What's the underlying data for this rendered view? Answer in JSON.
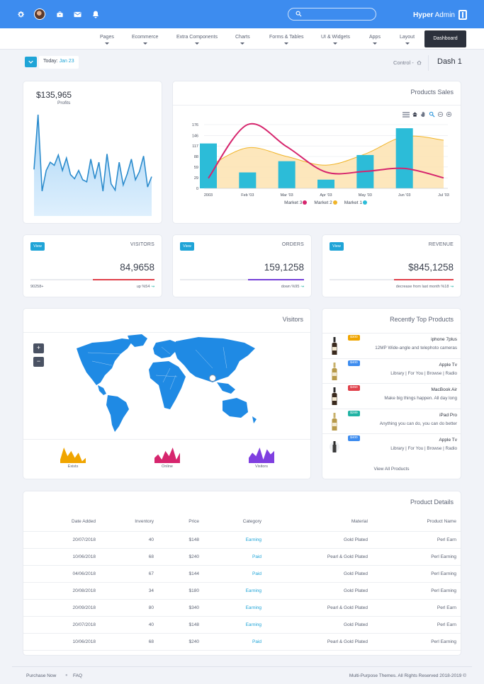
{
  "topbar": {
    "icons": [
      "gear-icon",
      "avatar",
      "briefcase-icon",
      "mail-icon",
      "bell-icon"
    ],
    "search": {
      "placeholder": "",
      "value": ""
    },
    "brand": {
      "part1": "Hyper",
      "part2": "Admin"
    }
  },
  "nav": {
    "items": [
      "Pages",
      "Ecommerce",
      "Extra Components",
      "Charts",
      "Forms & Tables",
      "UI & Widgets",
      "Apps",
      "Layout"
    ],
    "active": "Dashboard"
  },
  "breadcrumb": {
    "today_label": "Today:",
    "today_date": "Jan 23",
    "control": "Control -",
    "title": "Dash 1"
  },
  "profits": {
    "value": "$135,965",
    "label": "Profits",
    "chart_data": {
      "type": "area",
      "values": [
        45,
        98,
        24,
        44,
        52,
        49,
        59,
        44,
        56,
        40,
        36,
        44,
        35,
        33,
        55,
        36,
        52,
        24,
        60,
        31,
        25,
        52,
        30,
        41,
        55,
        35,
        43,
        58,
        28,
        38
      ],
      "color": "#2c8ccd"
    }
  },
  "sales": {
    "title": "Products Sales",
    "toolbar_icons": [
      "menu-icon",
      "home-icon",
      "pan-icon",
      "zoom-select-icon",
      "zoom-out-icon",
      "zoom-in-icon"
    ],
    "chart_data": {
      "type": "bar",
      "categories": [
        "2003",
        "Feb '03",
        "Mar '03",
        "Apr '03",
        "May '03",
        "Jun '03",
        "Jul '03"
      ],
      "ylim": [
        0,
        176
      ],
      "yticks": [
        "0",
        "29",
        "59",
        "88",
        "117",
        "146",
        "176"
      ],
      "series": [
        {
          "name": "Market 1",
          "kind": "bar",
          "color": "#2cbcd8",
          "values": [
            124,
            44,
            75,
            24,
            92,
            166,
            null
          ]
        },
        {
          "name": "Market 2",
          "kind": "area",
          "color": "#f0b429",
          "values": [
            60,
            112,
            88,
            64,
            95,
            143,
            133
          ]
        },
        {
          "name": "Market 3",
          "kind": "line",
          "color": "#d6256d",
          "values": [
            28,
            176,
            115,
            45,
            47,
            55,
            29
          ]
        }
      ],
      "legend": [
        "Market 3",
        "Market 2",
        "Market 1"
      ],
      "legend_position": "bottom"
    }
  },
  "stats": [
    {
      "button": "View",
      "title": "VISITORS",
      "value": "84,9658",
      "left": "90258+",
      "right": "up %54",
      "bar_color": "#e0404a",
      "fill": 0.5
    },
    {
      "button": "View",
      "title": "ORDERS",
      "value": "159,1258",
      "left": "",
      "right": "down %95",
      "bar_color": "#7540d8",
      "fill": 0.45
    },
    {
      "button": "View",
      "title": "REVENUE",
      "value": "$845,1258",
      "left": "",
      "right": "decrease from last month %18",
      "bar_color": "#e0404a",
      "fill": 0.48
    }
  ],
  "visitors": {
    "title": "Visitors",
    "zoom_in": "+",
    "zoom_out": "−",
    "sparks": [
      {
        "label": "Exists",
        "color": "#f0a500",
        "values": [
          2,
          9,
          4,
          7,
          3,
          6,
          1,
          3
        ]
      },
      {
        "label": "Online",
        "color": "#d6256d",
        "values": [
          3,
          5,
          2,
          7,
          4,
          9,
          2,
          6
        ]
      },
      {
        "label": "Visitors",
        "color": "#7f3fe0",
        "values": [
          3,
          6,
          4,
          9,
          2,
          8,
          5,
          7
        ]
      }
    ]
  },
  "products": {
    "title": "Recently Top Products",
    "items": [
      {
        "badge": "$300",
        "badge_color": "#f0a500",
        "name": "iphone 7plus",
        "desc": "12MP Wide-angle and telephoto cameras"
      },
      {
        "badge": "$400",
        "badge_color": "#3d8cef",
        "name": "Apple Tv",
        "desc": "Library | For You | Browse | Radio"
      },
      {
        "badge": "$450",
        "badge_color": "#e0404a",
        "name": "MacBook Air",
        "desc": "Make big things happen. All day long"
      },
      {
        "badge": "$289",
        "badge_color": "#21b3a4",
        "name": "iPad Pro",
        "desc": "Anything you can do, you can do better"
      },
      {
        "badge": "$400",
        "badge_color": "#3d8cef",
        "name": "Apple Tv",
        "desc": "Library | For You | Browse | Radio"
      }
    ],
    "view_all": "View All Products"
  },
  "details": {
    "title": "Product Details",
    "columns": [
      "Date Added",
      "Inventory",
      "Price",
      "Category",
      "Material",
      "Product Name"
    ],
    "rows": [
      [
        "20/07/2018",
        "40",
        "$148",
        "Earning",
        "Gold Plated",
        "Perl Earn"
      ],
      [
        "10/06/2018",
        "68",
        "$240",
        "Paid",
        "Pearl & Gold Plated",
        "Perl Earning"
      ],
      [
        "04/06/2018",
        "67",
        "$144",
        "Paid",
        "Gold Plated",
        "Perl Earning"
      ],
      [
        "20/08/2018",
        "34",
        "$180",
        "Earning",
        "Gold Plated",
        "Perl Earning"
      ],
      [
        "20/09/2018",
        "80",
        "$340",
        "Earning",
        "Pearl & Gold Plated",
        "Perl Earn"
      ],
      [
        "20/07/2018",
        "40",
        "$148",
        "Earning",
        "Gold Plated",
        "Perl Earn"
      ],
      [
        "10/06/2018",
        "68",
        "$240",
        "Paid",
        "Pearl & Gold Plated",
        "Perl Earning"
      ]
    ]
  },
  "footer": {
    "purchase": "Purchase Now",
    "faq": "FAQ",
    "copyright": "Multi-Purpose Themes. All Rights Reserved 2018-2019 ©"
  }
}
